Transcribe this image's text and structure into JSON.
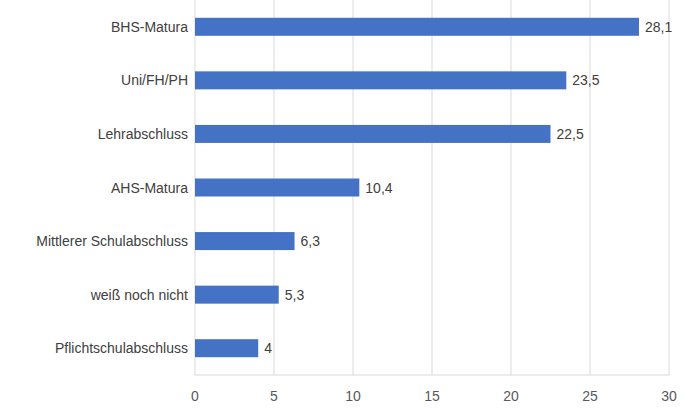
{
  "chart_data": {
    "type": "bar",
    "orientation": "horizontal",
    "categories": [
      "BHS-Matura",
      "Uni/FH/PH",
      "Lehrabschluss",
      "AHS-Matura",
      "Mittlerer Schulabschluss",
      "weiß noch nicht",
      "Pflichtschulabschluss"
    ],
    "values": [
      28.1,
      23.5,
      22.5,
      10.4,
      6.3,
      5.3,
      4
    ],
    "value_labels": [
      "28,1",
      "23,5",
      "22,5",
      "10,4",
      "6,3",
      "5,3",
      "4"
    ],
    "color": "#4472c4",
    "xlim": [
      0,
      30
    ],
    "xticks": [
      0,
      5,
      10,
      15,
      20,
      25,
      30
    ],
    "grid": true,
    "data_labels": true
  }
}
